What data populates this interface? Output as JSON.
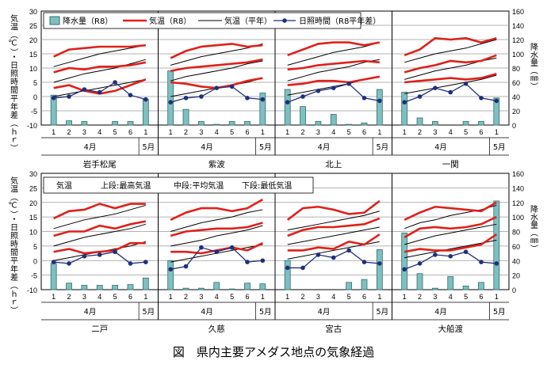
{
  "caption": "図　県内主要アメダス地点の気象経過",
  "left_axis_label": "気温（℃）・日照時間平年差（ｈｒ）",
  "right_axis_label": "降水量（㎜）",
  "legend_top": {
    "precip": "降水量（R8）",
    "temp": "気温（R8）",
    "temp_normal": "気温（平年）",
    "sun": "日照時間（R8平年差）"
  },
  "legend_bottom": {
    "a": "気温",
    "b": "上段:最高気温",
    "c": "中段:平均気温",
    "d": "下段:最低気温"
  },
  "colors": {
    "precip_fill": "#7fbfbf",
    "precip_stroke": "#2f6f6f",
    "temp": "#e0201b",
    "normal": "#000000",
    "sun": "#1f2f7a"
  },
  "chart_data": [
    {
      "type": "line",
      "station": "岩手松尾",
      "categories": [
        "4月 1",
        "2",
        "3",
        "4",
        "5",
        "6",
        "5月 1"
      ],
      "y_left_lim": [
        -10,
        30
      ],
      "y_right_lim": [
        0,
        160
      ],
      "precip_mm": [
        42,
        6,
        5,
        0,
        5,
        5,
        36
      ],
      "temp_max": [
        14,
        16.5,
        17,
        17.5,
        17.5,
        17.5,
        18
      ],
      "temp_mean": [
        8.5,
        10,
        9.5,
        10.5,
        10.5,
        11,
        12
      ],
      "temp_min": [
        3,
        4,
        2,
        1,
        2,
        4,
        6
      ],
      "normal_max": [
        10.5,
        12,
        13.5,
        15,
        16,
        17,
        18
      ],
      "normal_mean": [
        5,
        6.5,
        8,
        9,
        10,
        11.5,
        13
      ],
      "normal_min": [
        0,
        1,
        2,
        3,
        4,
        5,
        6
      ],
      "sunshine": [
        -0.5,
        0,
        2.5,
        1.5,
        5,
        0.5,
        -1
      ]
    },
    {
      "type": "line",
      "station": "紫波",
      "categories": [
        "4月 1",
        "2",
        "3",
        "4",
        "5",
        "6",
        "5月 1"
      ],
      "y_left_lim": [
        -10,
        30
      ],
      "y_right_lim": [
        0,
        160
      ],
      "precip_mm": [
        76,
        22,
        5,
        1,
        5,
        5,
        45
      ],
      "temp_max": [
        13.5,
        16,
        17.5,
        18,
        18.5,
        17.5,
        18
      ],
      "temp_mean": [
        9,
        10,
        10.5,
        11,
        11.5,
        12,
        13
      ],
      "temp_min": [
        5,
        4.5,
        3.5,
        3,
        4,
        5.5,
        6.5
      ],
      "normal_max": [
        11,
        12.5,
        14,
        15,
        16,
        17,
        18.5
      ],
      "normal_mean": [
        5.5,
        7,
        8,
        9,
        10,
        11.5,
        12.5
      ],
      "normal_min": [
        0,
        1,
        2,
        3,
        4,
        5,
        6.5
      ],
      "sunshine": [
        -2,
        -0.5,
        0,
        3,
        3.5,
        -0.5,
        -1
      ]
    },
    {
      "type": "line",
      "station": "北上",
      "categories": [
        "4月 1",
        "2",
        "3",
        "4",
        "5",
        "6",
        "5月 1"
      ],
      "y_left_lim": [
        -10,
        30
      ],
      "y_right_lim": [
        0,
        160
      ],
      "precip_mm": [
        50,
        26,
        5,
        15,
        1,
        3,
        50
      ],
      "temp_max": [
        14.5,
        16.5,
        18.5,
        19,
        19,
        18,
        19
      ],
      "temp_mean": [
        9.5,
        10,
        11,
        11.5,
        12,
        12.5,
        12
      ],
      "temp_min": [
        4,
        4.5,
        5.5,
        5.5,
        5,
        6,
        7
      ],
      "normal_max": [
        11,
        12.5,
        14,
        15.5,
        16.5,
        17.5,
        19
      ],
      "normal_mean": [
        5.5,
        7,
        8.5,
        9.5,
        10.5,
        12,
        13
      ],
      "normal_min": [
        0.5,
        1.5,
        2.5,
        3.5,
        4.5,
        6,
        7
      ],
      "sunshine": [
        -2,
        0,
        2,
        3,
        4.5,
        -0.5,
        -1.5
      ]
    },
    {
      "type": "line",
      "station": "一関",
      "categories": [
        "4月 1",
        "2",
        "3",
        "4",
        "5",
        "6",
        "5月 1"
      ],
      "y_left_lim": [
        -10,
        30
      ],
      "y_right_lim": [
        0,
        160
      ],
      "precip_mm": [
        46,
        10,
        5,
        0,
        5,
        5,
        38
      ],
      "temp_max": [
        14.5,
        16.5,
        20.5,
        20,
        20.5,
        19,
        20.5
      ],
      "temp_mean": [
        8.5,
        10,
        11,
        12.5,
        12,
        12.5,
        14.5
      ],
      "temp_min": [
        5,
        5.5,
        6,
        6.5,
        6,
        6.5,
        8
      ],
      "normal_max": [
        12,
        13.5,
        15,
        16,
        17,
        18.5,
        20
      ],
      "normal_mean": [
        6,
        7.5,
        9,
        10,
        11,
        12.5,
        13.5
      ],
      "normal_min": [
        1,
        2,
        3,
        4,
        5,
        6,
        7.5
      ],
      "sunshine": [
        -2,
        0,
        3,
        1.5,
        4.5,
        -0.5,
        -1.5
      ]
    },
    {
      "type": "line",
      "station": "二戸",
      "categories": [
        "4月 1",
        "2",
        "3",
        "4",
        "5",
        "6",
        "5月 1"
      ],
      "y_left_lim": [
        -10,
        30
      ],
      "y_right_lim": [
        0,
        160
      ],
      "precip_mm": [
        36,
        9,
        6,
        6,
        6,
        7,
        16
      ],
      "temp_max": [
        14.5,
        17,
        17.5,
        19.5,
        18,
        19.5,
        19.5
      ],
      "temp_mean": [
        8.5,
        10,
        10,
        12,
        11,
        12.5,
        13.5
      ],
      "temp_min": [
        3,
        4,
        2.5,
        3,
        3.5,
        6,
        6
      ],
      "normal_max": [
        11,
        12.5,
        14,
        15,
        16,
        17.5,
        19
      ],
      "normal_mean": [
        5,
        6.5,
        8,
        9,
        10,
        11,
        12.5
      ],
      "normal_min": [
        0,
        1,
        2,
        3,
        4,
        5,
        6.5
      ],
      "sunshine": [
        -0.5,
        -1,
        1.5,
        2,
        3,
        -1,
        -0.5
      ]
    },
    {
      "type": "line",
      "station": "久慈",
      "categories": [
        "4月 1",
        "2",
        "3",
        "4",
        "5",
        "6",
        "5月 1"
      ],
      "y_left_lim": [
        -10,
        30
      ],
      "y_right_lim": [
        0,
        160
      ],
      "precip_mm": [
        40,
        2,
        2,
        10,
        1,
        9,
        8
      ],
      "temp_max": [
        14,
        16.5,
        18,
        18,
        17,
        18,
        21
      ],
      "temp_mean": [
        8.5,
        10,
        10.5,
        11,
        11,
        11.5,
        13
      ],
      "temp_min": [
        3,
        3,
        2.5,
        3.5,
        4.5,
        3.5,
        6
      ],
      "normal_max": [
        10,
        11.5,
        13,
        14,
        15,
        16.5,
        17.5
      ],
      "normal_mean": [
        5,
        6,
        7,
        8.5,
        9.5,
        10.5,
        12
      ],
      "normal_min": [
        -0.5,
        0.5,
        1.5,
        2.5,
        3.5,
        4.5,
        5.5
      ],
      "sunshine": [
        -3,
        -2,
        4.5,
        3,
        4.5,
        -0.5,
        0
      ]
    },
    {
      "type": "line",
      "station": "宮古",
      "categories": [
        "4月 1",
        "2",
        "3",
        "4",
        "5",
        "6",
        "5月 1"
      ],
      "y_left_lim": [
        -10,
        30
      ],
      "y_right_lim": [
        0,
        160
      ],
      "precip_mm": [
        40,
        0,
        0,
        0,
        10,
        14,
        55
      ],
      "temp_max": [
        14,
        18,
        18.5,
        17.5,
        16,
        16.5,
        20.5
      ],
      "temp_mean": [
        8.5,
        10.5,
        11.5,
        11.5,
        12,
        12.5,
        14.5
      ],
      "temp_min": [
        3.5,
        3.5,
        4.5,
        4,
        6.5,
        5.5,
        9
      ],
      "normal_max": [
        10.5,
        11.5,
        12.5,
        13.5,
        14.5,
        15.5,
        17
      ],
      "normal_mean": [
        5.5,
        6.5,
        7.5,
        8.5,
        9.5,
        10.5,
        11.5
      ],
      "normal_min": [
        0.5,
        1.5,
        2.5,
        3.5,
        4.5,
        5.5,
        6.5
      ],
      "sunshine": [
        -2.5,
        -2.5,
        2,
        1,
        3.5,
        -0.5,
        -1
      ]
    },
    {
      "type": "line",
      "station": "大船渡",
      "categories": [
        "4月 1",
        "2",
        "3",
        "4",
        "5",
        "6",
        "5月 1"
      ],
      "y_left_lim": [
        -10,
        30
      ],
      "y_right_lim": [
        0,
        160
      ],
      "precip_mm": [
        78,
        22,
        2,
        18,
        5,
        10,
        122
      ],
      "temp_max": [
        14,
        16.5,
        18.5,
        18,
        17.5,
        17,
        20
      ],
      "temp_mean": [
        8,
        11,
        11.5,
        11,
        11.5,
        12.5,
        15
      ],
      "temp_min": [
        3,
        4,
        3.5,
        3.5,
        4.5,
        5.5,
        9
      ],
      "normal_max": [
        11,
        13,
        14,
        15.5,
        16.5,
        17.5,
        19
      ],
      "normal_mean": [
        5.5,
        7,
        8.5,
        9.5,
        10.5,
        11.5,
        12.5
      ],
      "normal_min": [
        1,
        2,
        3,
        4,
        5,
        6,
        7
      ],
      "sunshine": [
        -3,
        -1,
        2,
        1.5,
        3,
        -0.5,
        -1
      ]
    }
  ],
  "axis_ticks_left": [
    "-10",
    "-5",
    "0",
    "5",
    "10",
    "15",
    "20",
    "25",
    "30"
  ],
  "axis_ticks_right": [
    "0",
    "20",
    "40",
    "60",
    "80",
    "100",
    "120",
    "140",
    "160"
  ],
  "xlabels_top": [
    "1",
    "2",
    "3",
    "4",
    "5",
    "6",
    "1"
  ],
  "month_labels": {
    "apr": "4月",
    "may": "5月"
  }
}
